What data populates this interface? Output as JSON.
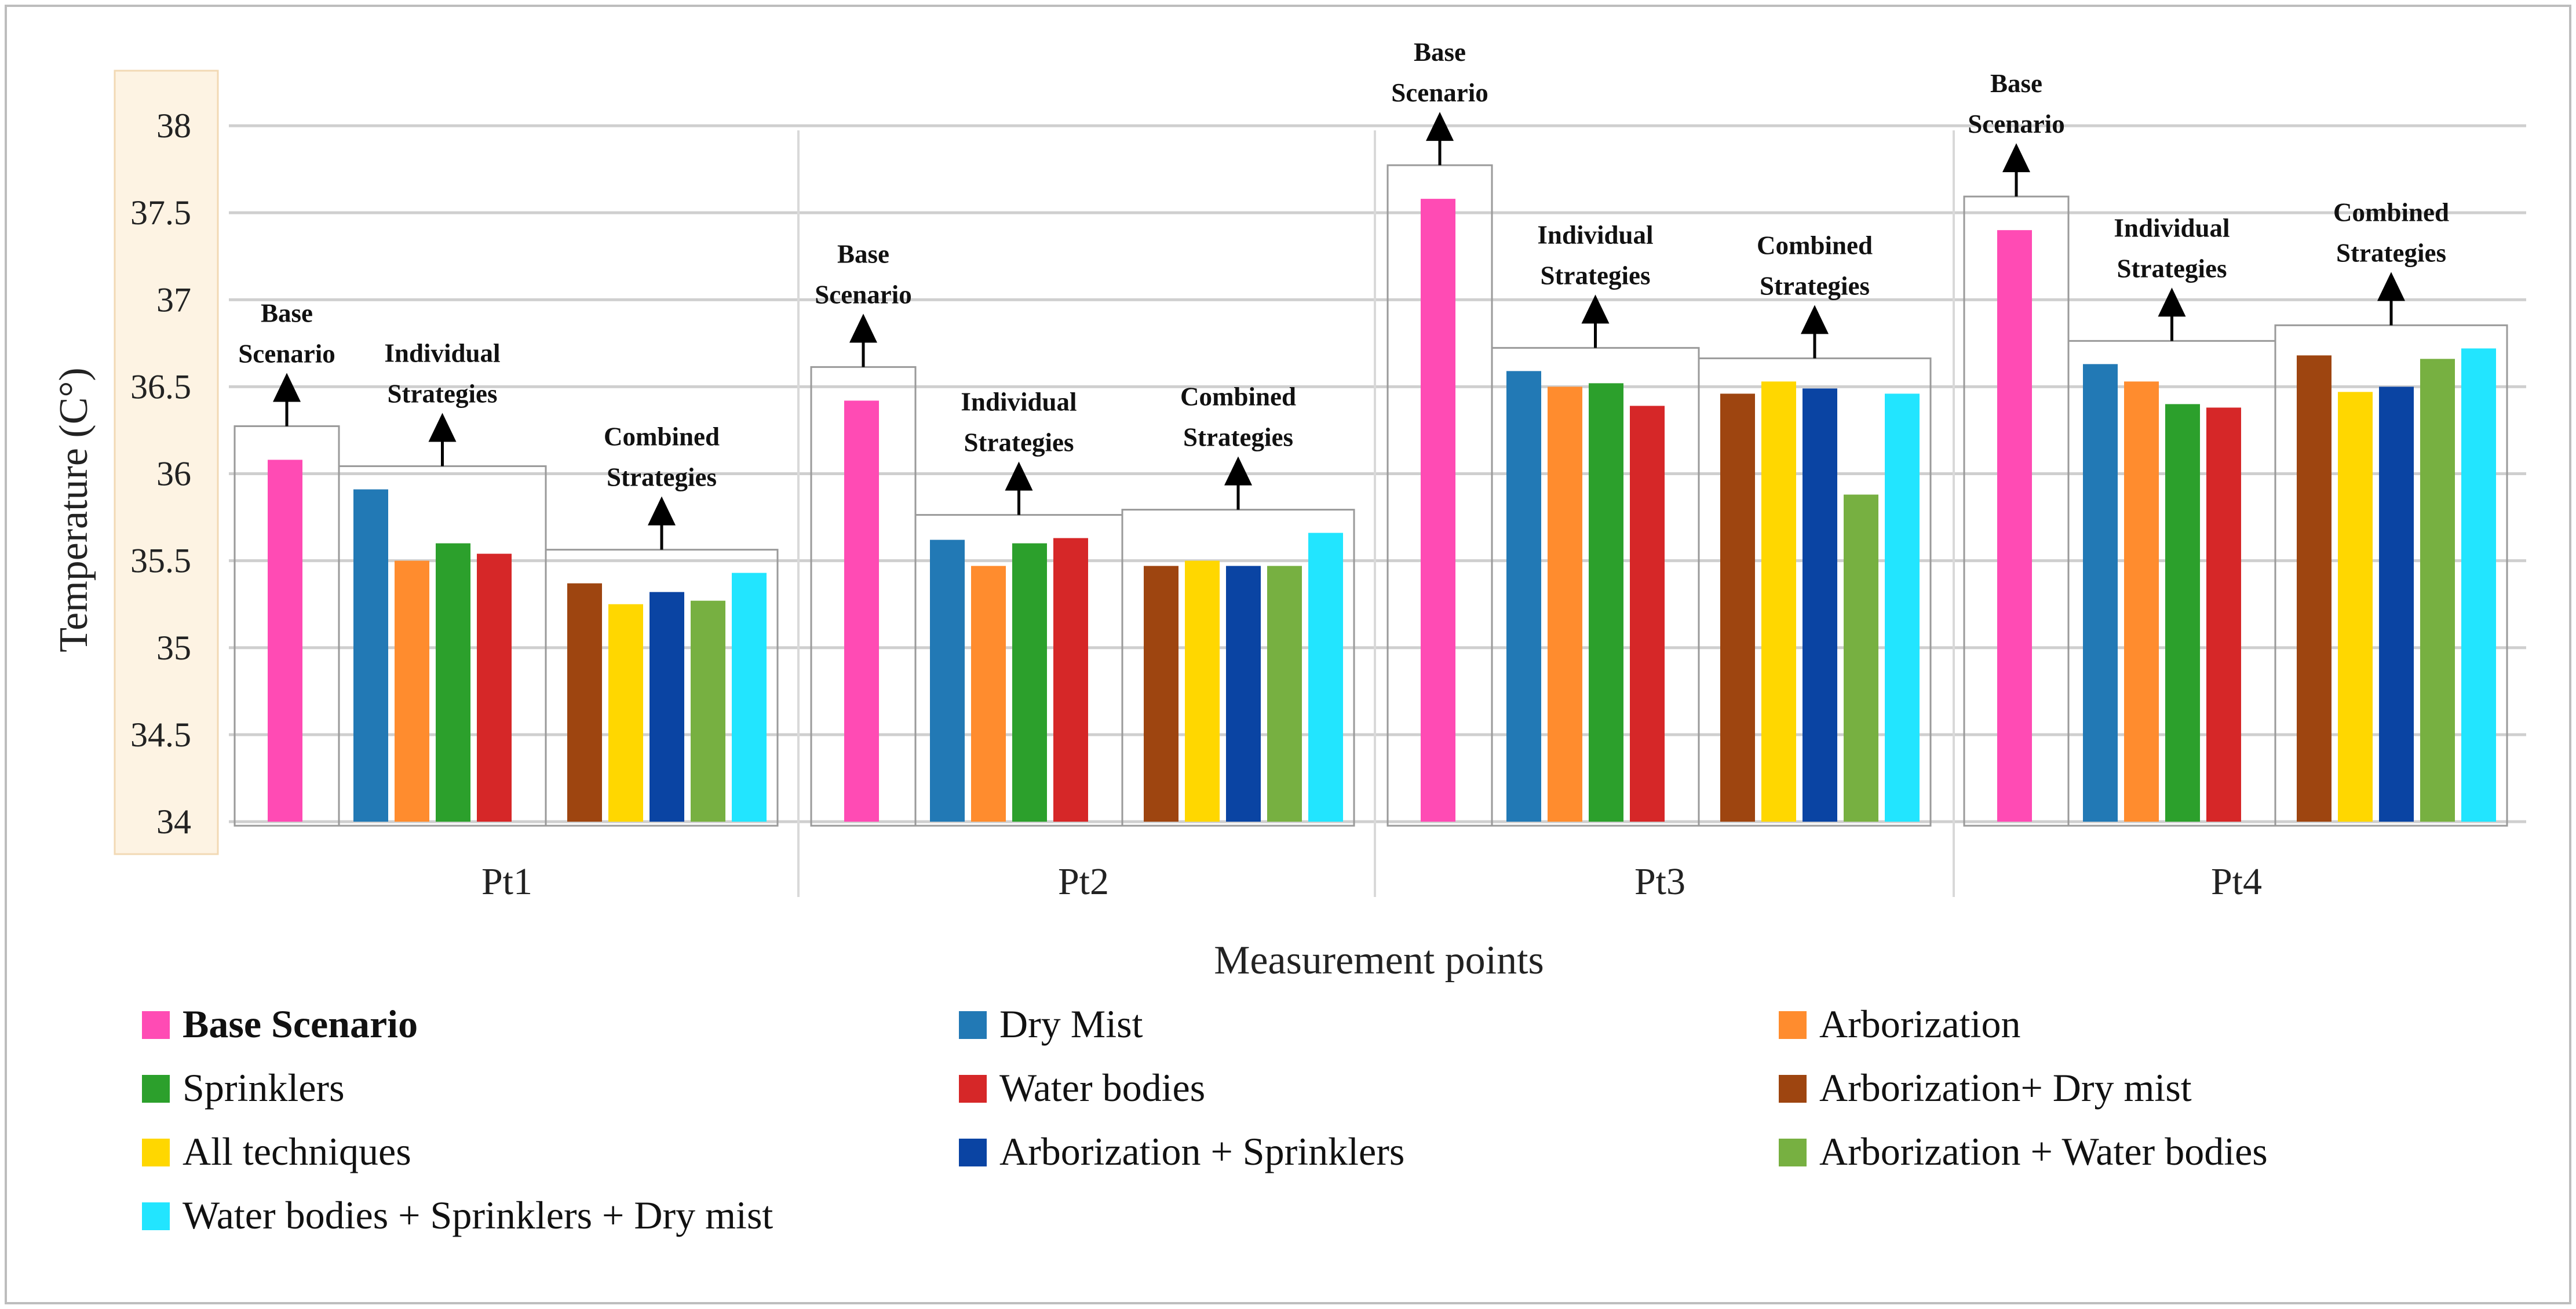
{
  "chart_data": {
    "type": "bar",
    "title": "",
    "xlabel": "Measurement points",
    "ylabel": "Temperature (C°)",
    "ylim": [
      34,
      38
    ],
    "yticks": [
      "34",
      "34.5",
      "35",
      "35.5",
      "36",
      "36.5",
      "37",
      "37.5",
      "38"
    ],
    "grid": true,
    "categories": [
      "Pt1",
      "Pt2",
      "Pt3",
      "Pt4"
    ],
    "series": [
      {
        "name": "Base Scenario",
        "color": "#ff4bb4",
        "values": [
          36.08,
          36.42,
          37.58,
          37.4
        ]
      },
      {
        "name": "Dry Mist",
        "color": "#2279b5",
        "values": [
          35.91,
          35.62,
          36.59,
          36.63
        ]
      },
      {
        "name": "Arborization",
        "color": "#ff8c2e",
        "values": [
          35.5,
          35.47,
          36.5,
          36.53
        ]
      },
      {
        "name": "Sprinklers",
        "color": "#2ca02c",
        "values": [
          35.6,
          35.6,
          36.52,
          36.4
        ]
      },
      {
        "name": "Water bodies",
        "color": "#d62728",
        "values": [
          35.54,
          35.63,
          36.39,
          36.38
        ]
      },
      {
        "name": "Arborization+ Dry mist",
        "color": "#9e4510",
        "values": [
          35.37,
          35.47,
          36.46,
          36.68
        ]
      },
      {
        "name": "All techniques",
        "color": "#ffd700",
        "values": [
          35.25,
          35.5,
          36.53,
          36.47
        ]
      },
      {
        "name": "Arborization + Sprinklers",
        "color": "#0a44a3",
        "values": [
          35.32,
          35.47,
          36.49,
          36.5
        ]
      },
      {
        "name": "Arborization + Water bodies",
        "color": "#77b041",
        "values": [
          35.27,
          35.47,
          35.88,
          36.66
        ]
      },
      {
        "name": "Water bodies + Sprinklers + Dry mist",
        "color": "#22e5ff",
        "values": [
          35.43,
          35.66,
          36.46,
          36.72
        ]
      }
    ],
    "group_labels": {
      "base": [
        "Base",
        "Scenario"
      ],
      "individual": [
        "Individual",
        "Strategies"
      ],
      "combined": [
        "Combined",
        "Strategies"
      ]
    },
    "legend_bold": "Base Scenario",
    "legend_position": "bottom"
  }
}
